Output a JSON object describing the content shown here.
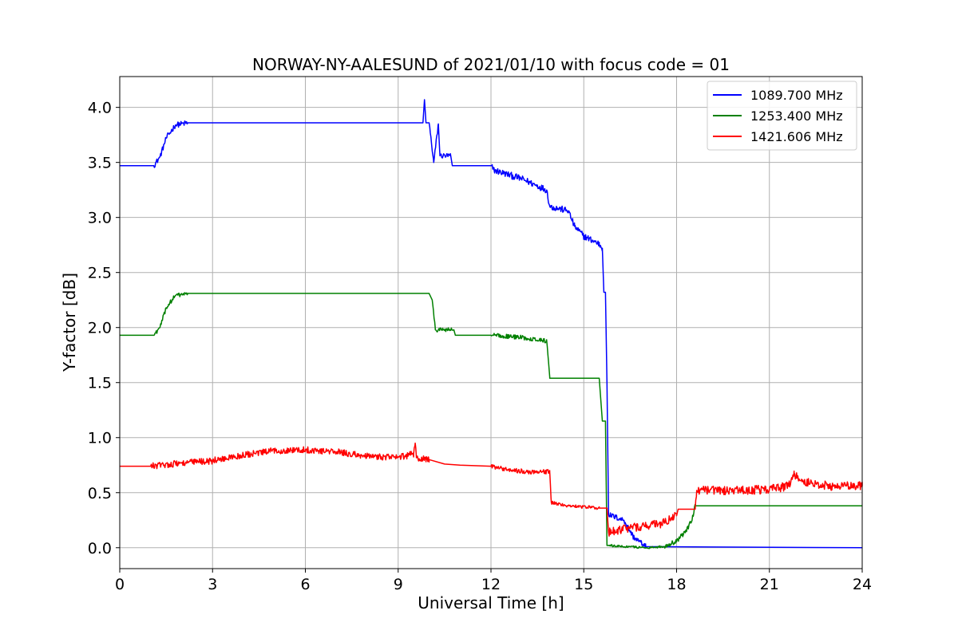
{
  "chart_data": {
    "type": "line",
    "title": "NORWAY-NY-AALESUND of 2021/01/10 with focus code = 01",
    "xlabel": "Universal Time [h]",
    "ylabel": "Y-factor [dB]",
    "xlim": [
      0,
      24
    ],
    "ylim": [
      -0.19,
      4.28
    ],
    "xticks": [
      0,
      3,
      6,
      9,
      12,
      15,
      18,
      21,
      24
    ],
    "xtick_labels": [
      "0",
      "3",
      "6",
      "9",
      "12",
      "15",
      "18",
      "21",
      "24"
    ],
    "yticks": [
      0.0,
      0.5,
      1.0,
      1.5,
      2.0,
      2.5,
      3.0,
      3.5,
      4.0
    ],
    "ytick_labels": [
      "0.0",
      "0.5",
      "1.0",
      "1.5",
      "2.0",
      "2.5",
      "3.0",
      "3.5",
      "4.0"
    ],
    "grid": true,
    "legend_position": "top-right",
    "series": [
      {
        "name": "1089.700 MHz",
        "color": "#0000ff",
        "noise": [
          [
            1.2,
            2.0,
            0.05
          ],
          [
            10.0,
            10.7,
            0.05
          ],
          [
            12.0,
            15.6,
            0.06
          ],
          [
            15.8,
            17.0,
            0.05
          ]
        ],
        "points": [
          [
            0,
            3.47
          ],
          [
            1.1,
            3.47
          ],
          [
            1.3,
            3.55
          ],
          [
            1.5,
            3.72
          ],
          [
            1.8,
            3.84
          ],
          [
            2.2,
            3.86
          ],
          [
            9.8,
            3.86
          ],
          [
            9.85,
            4.07
          ],
          [
            9.9,
            3.86
          ],
          [
            10.0,
            3.86
          ],
          [
            10.15,
            3.5
          ],
          [
            10.3,
            3.85
          ],
          [
            10.35,
            3.56
          ],
          [
            10.7,
            3.56
          ],
          [
            10.75,
            3.47
          ],
          [
            12.0,
            3.47
          ],
          [
            12.1,
            3.43
          ],
          [
            13.0,
            3.35
          ],
          [
            13.8,
            3.25
          ],
          [
            13.9,
            3.1
          ],
          [
            14.5,
            3.06
          ],
          [
            14.7,
            2.92
          ],
          [
            15.0,
            2.83
          ],
          [
            15.5,
            2.76
          ],
          [
            15.6,
            2.72
          ],
          [
            15.65,
            2.32
          ],
          [
            15.7,
            2.32
          ],
          [
            15.75,
            1.5
          ],
          [
            15.8,
            0.3
          ],
          [
            16.3,
            0.25
          ],
          [
            16.6,
            0.1
          ],
          [
            17.0,
            0.01
          ],
          [
            24,
            0.0
          ]
        ]
      },
      {
        "name": "1253.400 MHz",
        "color": "#008000",
        "noise": [
          [
            1.2,
            2.0,
            0.04
          ],
          [
            10.1,
            10.8,
            0.04
          ],
          [
            12.0,
            13.9,
            0.04
          ],
          [
            15.8,
            17.6,
            0.02
          ],
          [
            17.6,
            18.6,
            0.04
          ]
        ],
        "points": [
          [
            0,
            1.93
          ],
          [
            1.1,
            1.93
          ],
          [
            1.3,
            2.0
          ],
          [
            1.5,
            2.18
          ],
          [
            1.8,
            2.29
          ],
          [
            2.2,
            2.31
          ],
          [
            10.0,
            2.31
          ],
          [
            10.1,
            2.25
          ],
          [
            10.2,
            1.98
          ],
          [
            10.8,
            1.98
          ],
          [
            10.85,
            1.93
          ],
          [
            12.0,
            1.93
          ],
          [
            13.0,
            1.91
          ],
          [
            13.8,
            1.88
          ],
          [
            13.9,
            1.54
          ],
          [
            15.5,
            1.54
          ],
          [
            15.6,
            1.15
          ],
          [
            15.7,
            1.15
          ],
          [
            15.75,
            0.02
          ],
          [
            17.0,
            0.0
          ],
          [
            17.6,
            0.01
          ],
          [
            18.0,
            0.06
          ],
          [
            18.3,
            0.15
          ],
          [
            18.5,
            0.25
          ],
          [
            18.6,
            0.38
          ],
          [
            24,
            0.38
          ]
        ]
      },
      {
        "name": "1421.606 MHz",
        "color": "#ff0000",
        "noise": [
          [
            1.0,
            10.0,
            0.06
          ],
          [
            12.0,
            13.9,
            0.04
          ],
          [
            13.9,
            15.5,
            0.03
          ],
          [
            15.8,
            18.0,
            0.08
          ],
          [
            18.6,
            24.0,
            0.08
          ]
        ],
        "points": [
          [
            0,
            0.74
          ],
          [
            1.0,
            0.74
          ],
          [
            2.0,
            0.77
          ],
          [
            3.0,
            0.79
          ],
          [
            4.0,
            0.84
          ],
          [
            5.0,
            0.88
          ],
          [
            6.0,
            0.89
          ],
          [
            7.0,
            0.87
          ],
          [
            8.0,
            0.83
          ],
          [
            9.0,
            0.82
          ],
          [
            9.5,
            0.85
          ],
          [
            9.55,
            0.95
          ],
          [
            9.6,
            0.82
          ],
          [
            10.0,
            0.8
          ],
          [
            10.5,
            0.76
          ],
          [
            11.0,
            0.75
          ],
          [
            12.0,
            0.74
          ],
          [
            12.5,
            0.71
          ],
          [
            13.2,
            0.69
          ],
          [
            13.9,
            0.69
          ],
          [
            13.95,
            0.41
          ],
          [
            14.5,
            0.38
          ],
          [
            15.5,
            0.36
          ],
          [
            15.75,
            0.36
          ],
          [
            15.8,
            0.14
          ],
          [
            16.5,
            0.18
          ],
          [
            17.5,
            0.22
          ],
          [
            18.0,
            0.29
          ],
          [
            18.05,
            0.35
          ],
          [
            18.6,
            0.35
          ],
          [
            18.65,
            0.52
          ],
          [
            20.0,
            0.52
          ],
          [
            21.0,
            0.53
          ],
          [
            21.6,
            0.56
          ],
          [
            21.8,
            0.66
          ],
          [
            22.1,
            0.6
          ],
          [
            23.0,
            0.56
          ],
          [
            24,
            0.56
          ]
        ]
      }
    ]
  }
}
